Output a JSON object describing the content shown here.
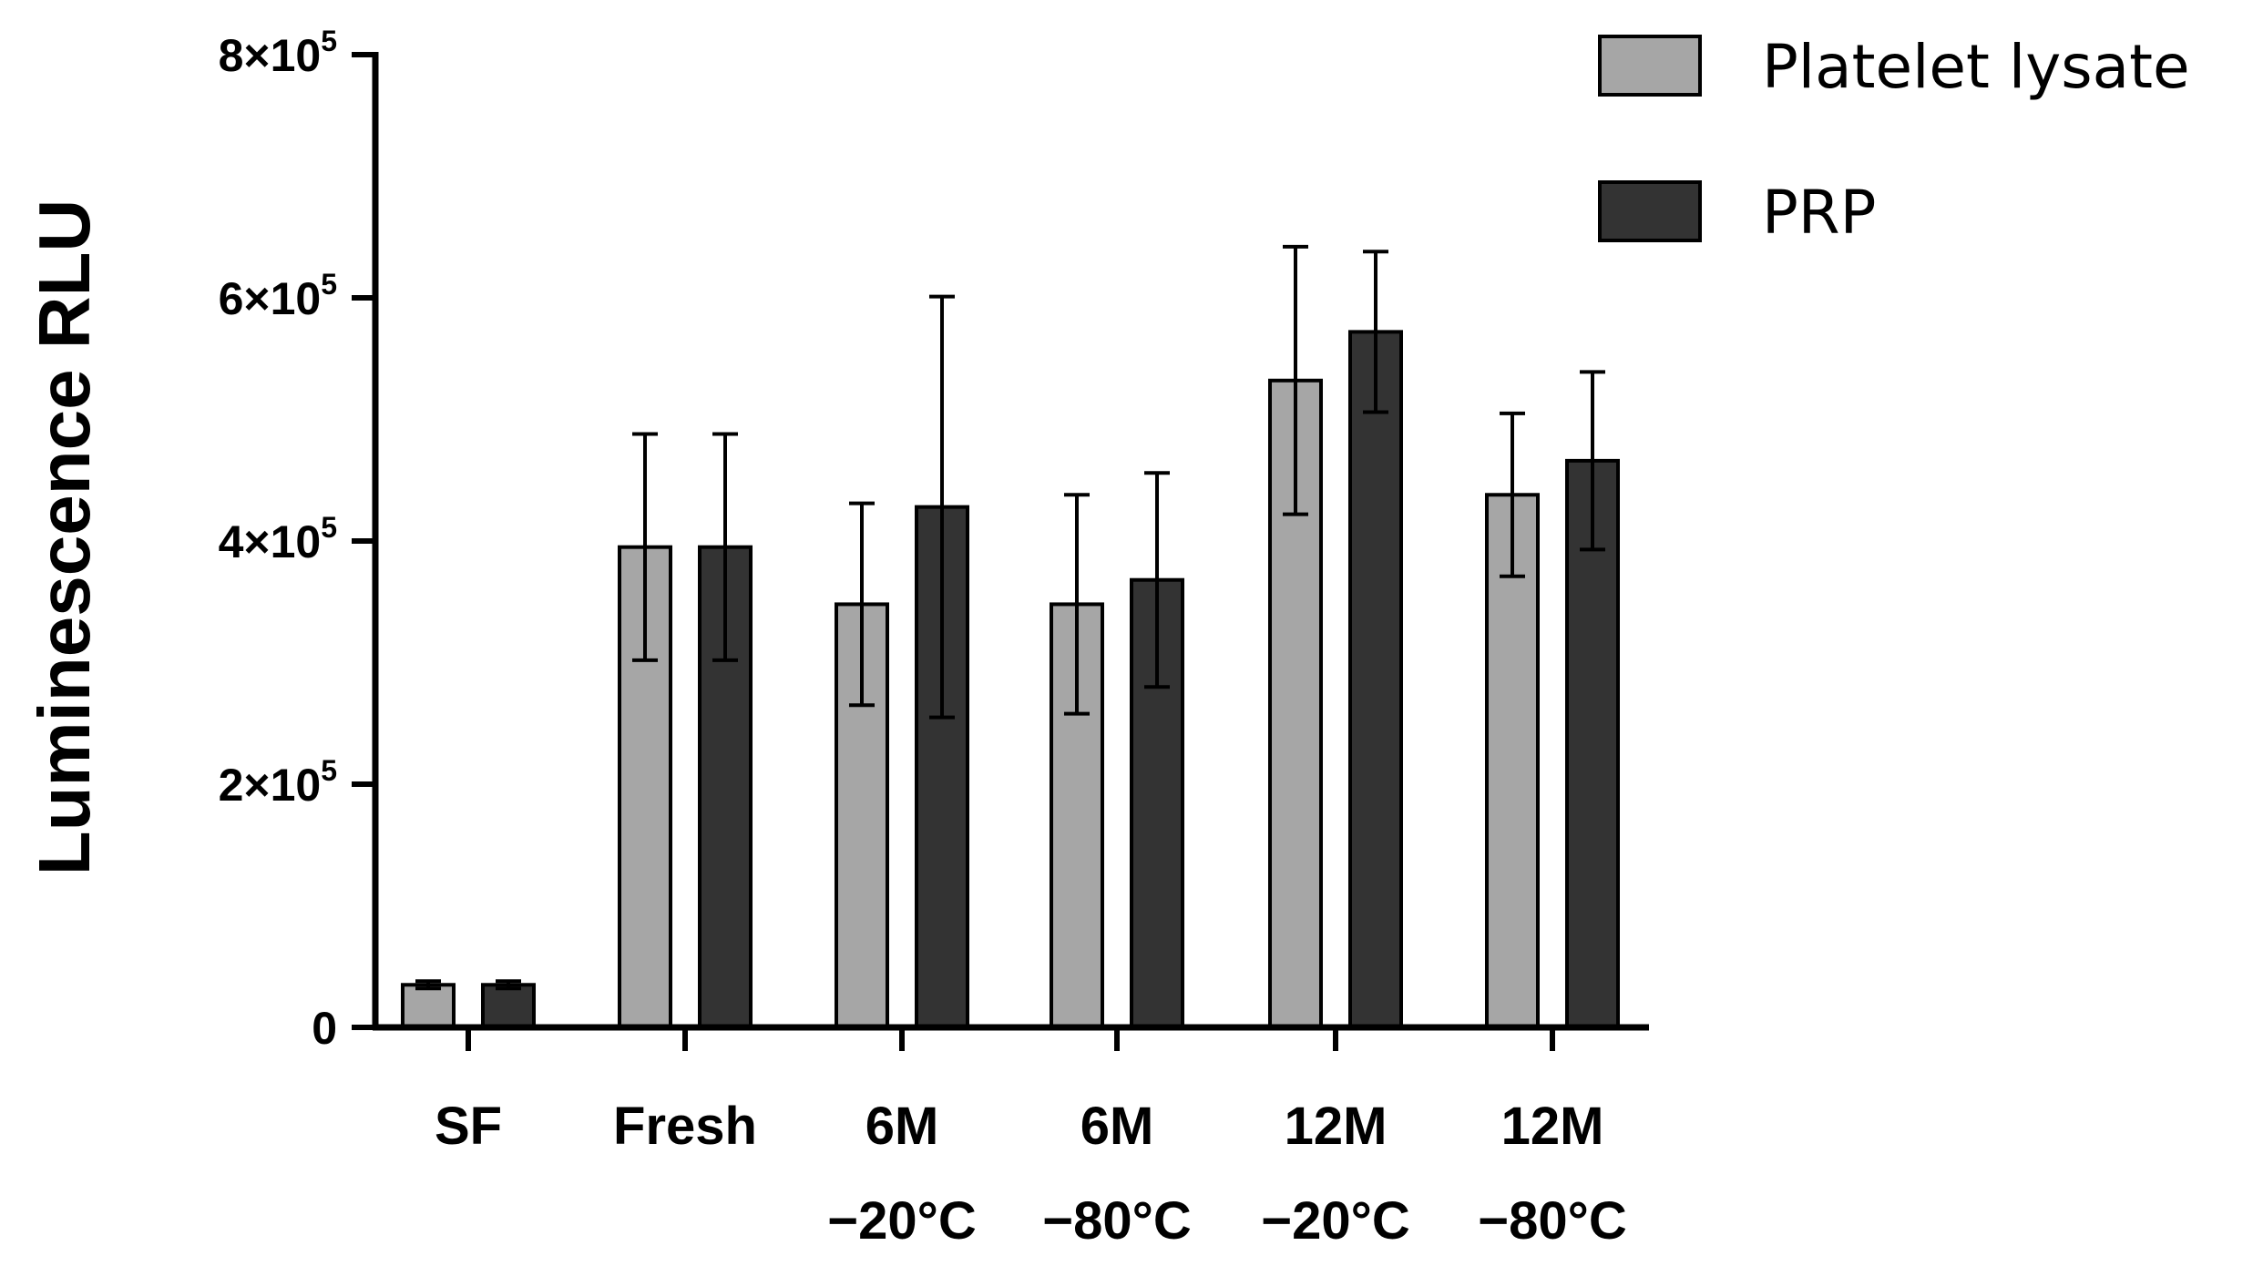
{
  "chart_data": {
    "type": "bar",
    "ylabel": "Luminescence RLU",
    "xlabel": "",
    "ylim": [
      0,
      800000
    ],
    "yticks": [
      {
        "value": 0,
        "base": "0",
        "exp": ""
      },
      {
        "value": 200000,
        "base": "2×10",
        "exp": "5"
      },
      {
        "value": 400000,
        "base": "4×10",
        "exp": "5"
      },
      {
        "value": 600000,
        "base": "6×10",
        "exp": "5"
      },
      {
        "value": 800000,
        "base": "8×10",
        "exp": "5"
      }
    ],
    "categories": [
      {
        "line1": "SF",
        "line2": ""
      },
      {
        "line1": "Fresh",
        "line2": ""
      },
      {
        "line1": "6M",
        "line2": "−20°C"
      },
      {
        "line1": "6M",
        "line2": "−80°C"
      },
      {
        "line1": "12M",
        "line2": "−20°C"
      },
      {
        "line1": "12M",
        "line2": "−80°C"
      }
    ],
    "series": [
      {
        "name": "Platelet lysate",
        "color": "#a6a6a6",
        "values": [
          35000,
          395000,
          348000,
          348000,
          532000,
          438000
        ],
        "errors": [
          3000,
          93000,
          83000,
          90000,
          110000,
          67000
        ]
      },
      {
        "name": "PRP",
        "color": "#333333",
        "values": [
          35000,
          395000,
          428000,
          368000,
          572000,
          466000
        ],
        "errors": [
          3000,
          93000,
          173000,
          88000,
          66000,
          73000
        ]
      }
    ],
    "legend": "top-right",
    "grid": false
  }
}
